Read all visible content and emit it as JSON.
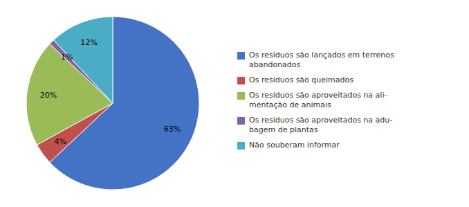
{
  "chart_data": {
    "type": "pie",
    "categories": [
      "Os resíduos são lançados em terrenos\nabandonados",
      "Os resíduos são queimados",
      "Os resíduos são aproveitados na ali-\nmentação de animais",
      "Os resíduos são aproveitados na adu-\nbagem de plantas",
      "Não souberam informar"
    ],
    "values": [
      63,
      4,
      20,
      1,
      12
    ],
    "value_labels": [
      "63%",
      "4%",
      "20%",
      "1%",
      "12%"
    ],
    "colors": [
      "#4472C4",
      "#C0504D",
      "#9BBB59",
      "#8064A2",
      "#4BACC6"
    ],
    "data_labels": true,
    "legend": "right"
  }
}
